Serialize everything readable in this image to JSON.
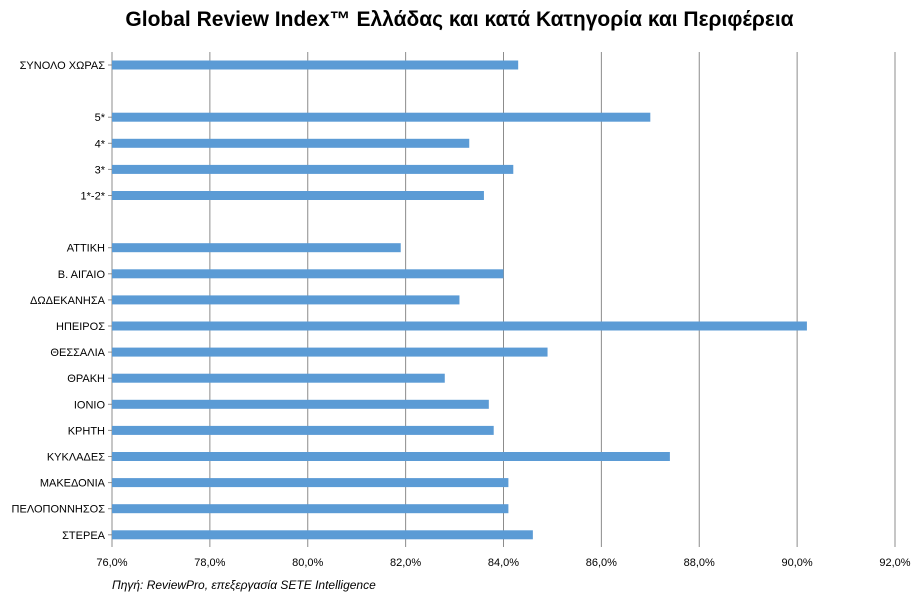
{
  "chart_data": {
    "type": "bar",
    "orientation": "horizontal",
    "title": "Global Review Index™ Ελλάδας και κατά Κατηγορία και Περιφέρεια",
    "xlabel": "",
    "ylabel": "",
    "xlim": [
      76,
      92
    ],
    "grid": true,
    "legend": "none",
    "bar_color": "#5b9bd5",
    "grid_color": "#8c8c8c",
    "categories": [
      "ΣΥΝΟΛΟ ΧΩΡΑΣ",
      "",
      "5*",
      "4*",
      "3*",
      "1*-2*",
      "",
      "ΑΤΤΙΚΗ",
      "Β. ΑΙΓΑΙΟ",
      "ΔΩΔΕΚΑΝΗΣΑ",
      "ΗΠΕΙΡΟΣ",
      "ΘΕΣΣΑΛΙΑ",
      "ΘΡΑΚΗ",
      "ΙΟΝΙΟ",
      "ΚΡΗΤΗ",
      "ΚΥΚΛΑΔΕΣ",
      "ΜΑΚΕΔΟΝΙΑ",
      "ΠΕΛΟΠΟΝΝΗΣΟΣ",
      "ΣΤΕΡΕΑ"
    ],
    "values": [
      84.3,
      null,
      87.0,
      83.3,
      84.2,
      83.6,
      null,
      81.9,
      84.0,
      83.1,
      90.2,
      84.9,
      82.8,
      83.7,
      83.8,
      87.4,
      84.1,
      84.1,
      84.6
    ],
    "ticks": [
      76,
      78,
      80,
      82,
      84,
      86,
      88,
      90,
      92
    ],
    "tick_labels": [
      "76,0%",
      "78,0%",
      "80,0%",
      "82,0%",
      "84,0%",
      "86,0%",
      "88,0%",
      "90,0%",
      "92,0%"
    ]
  },
  "source": "Πηγή: ReviewPro, επεξεργασία SETE Intelligence"
}
